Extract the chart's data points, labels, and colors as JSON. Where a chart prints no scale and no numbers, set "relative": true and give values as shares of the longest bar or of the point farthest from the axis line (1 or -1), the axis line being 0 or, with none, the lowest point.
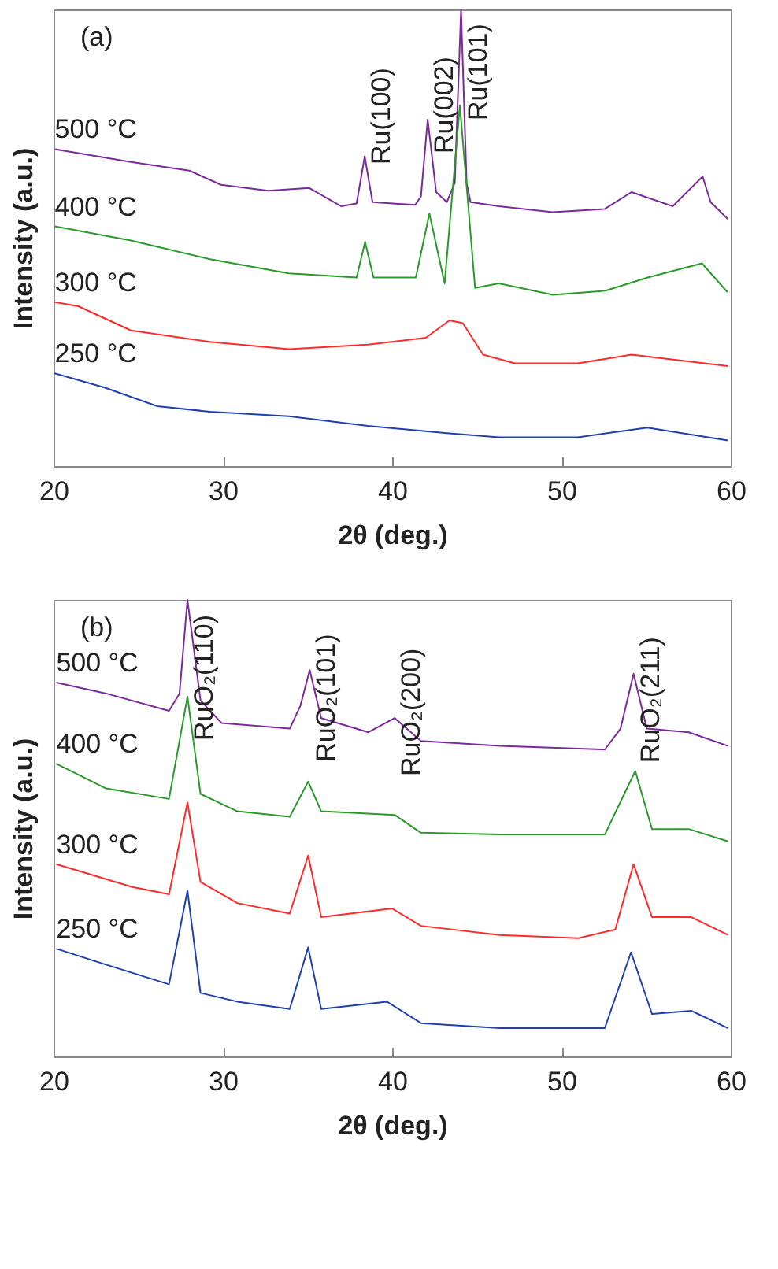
{
  "chart_data": [
    {
      "type": "line",
      "title": "(a)",
      "xlabel": "2θ (deg.)",
      "ylabel": "Intensity (a.u.)",
      "relative": true,
      "xlim": [
        20,
        60
      ],
      "xticks": [
        20,
        30,
        40,
        50,
        60
      ],
      "tick_labels": "x",
      "grid": false,
      "legend": false,
      "annotations": [
        {
          "text": "Ru(100)",
          "x": 38.38,
          "y": 0.678
        },
        {
          "text": "Ru(002)",
          "x": 42.1,
          "y": 0.759
        },
        {
          "text": "Ru(101)",
          "x": 44.07,
          "y": 1.0
        }
      ],
      "series": [
        {
          "name": "500 °C",
          "color": "#7b2a9b",
          "x": [
            20.07,
            24.57,
            28.02,
            29.89,
            32.69,
            35.11,
            36.98,
            37.9,
            38.38,
            38.84,
            41.36,
            41.7,
            42.1,
            42.6,
            43.23,
            43.7,
            44.07,
            44.4,
            44.63,
            46.31,
            49.48,
            52.56,
            54.14,
            56.57,
            58.34,
            58.81,
            59.83
          ],
          "values": [
            0.694,
            0.666,
            0.647,
            0.616,
            0.603,
            0.609,
            0.569,
            0.575,
            0.678,
            0.578,
            0.572,
            0.59,
            0.759,
            0.6,
            0.578,
            0.62,
            1.0,
            0.62,
            0.578,
            0.569,
            0.556,
            0.563,
            0.6,
            0.569,
            0.634,
            0.578,
            0.541
          ]
        },
        {
          "name": "400 °C",
          "color": "#2a9a2a",
          "x": [
            20.07,
            24.57,
            29.24,
            33.9,
            37.9,
            38.4,
            38.9,
            41.4,
            42.2,
            43.1,
            44.0,
            44.9,
            46.3,
            49.5,
            52.6,
            55.1,
            58.3,
            59.8
          ],
          "values": [
            0.525,
            0.494,
            0.453,
            0.422,
            0.413,
            0.491,
            0.413,
            0.413,
            0.553,
            0.4,
            0.79,
            0.39,
            0.4,
            0.375,
            0.384,
            0.413,
            0.444,
            0.381
          ]
        },
        {
          "name": "300 °C",
          "color": "#ff2a2a",
          "x": [
            20.07,
            21.46,
            24.57,
            29.24,
            33.9,
            38.56,
            41.99,
            43.39,
            44.17,
            45.37,
            47.24,
            50.97,
            54.14,
            59.83
          ],
          "values": [
            0.359,
            0.35,
            0.297,
            0.272,
            0.256,
            0.266,
            0.281,
            0.319,
            0.313,
            0.244,
            0.225,
            0.225,
            0.244,
            0.219
          ]
        },
        {
          "name": "250 °C",
          "color": "#2040b0",
          "x": [
            20.07,
            23.01,
            26.13,
            29.24,
            33.9,
            38.56,
            43.23,
            46.31,
            50.97,
            55.07,
            59.83
          ],
          "values": [
            0.203,
            0.172,
            0.131,
            0.119,
            0.109,
            0.088,
            0.072,
            0.063,
            0.063,
            0.084,
            0.056
          ]
        }
      ]
    },
    {
      "type": "line",
      "title": "(b)",
      "xlabel": "2θ (deg.)",
      "ylabel": "Intensity (a.u.)",
      "relative": true,
      "xlim": [
        20,
        60
      ],
      "xticks": [
        20,
        30,
        40,
        50,
        60
      ],
      "tick_labels": "x",
      "grid": false,
      "legend": false,
      "annotations": [
        {
          "text": "RuO₂(110)",
          "x": 27.91,
          "y": 1.0
        },
        {
          "text": "RuO₂(101)",
          "x": 35.13,
          "y": 0.846
        },
        {
          "text": "RuO₂(200)",
          "x": 40.15,
          "y": 0.741
        },
        {
          "text": "RuO₂(211)",
          "x": 54.26,
          "y": 0.838
        }
      ],
      "series": [
        {
          "name": "500 °C",
          "color": "#7b2a9b",
          "x": [
            20.16,
            23.1,
            26.82,
            27.44,
            27.91,
            28.68,
            29.93,
            33.95,
            34.58,
            35.13,
            35.81,
            38.6,
            40.15,
            41.7,
            46.35,
            52.56,
            53.49,
            54.26,
            55.04,
            57.52,
            59.84
          ],
          "values": [
            0.819,
            0.795,
            0.757,
            0.795,
            1.0,
            0.78,
            0.73,
            0.718,
            0.768,
            0.846,
            0.741,
            0.71,
            0.741,
            0.691,
            0.68,
            0.672,
            0.718,
            0.838,
            0.718,
            0.71,
            0.68
          ]
        },
        {
          "name": "400 °C",
          "color": "#2a9a2a",
          "x": [
            20.16,
            23.1,
            26.82,
            27.91,
            28.68,
            30.85,
            33.95,
            35.04,
            35.81,
            40.15,
            41.7,
            46.35,
            52.56,
            54.36,
            55.35,
            57.52,
            59.84
          ],
          "values": [
            0.641,
            0.587,
            0.564,
            0.788,
            0.575,
            0.537,
            0.525,
            0.602,
            0.537,
            0.529,
            0.49,
            0.486,
            0.486,
            0.625,
            0.498,
            0.498,
            0.471
          ]
        },
        {
          "name": "300 °C",
          "color": "#ff2a2a",
          "x": [
            20.16,
            24.65,
            26.82,
            27.91,
            28.68,
            30.85,
            33.95,
            35.04,
            35.81,
            40.0,
            41.7,
            46.35,
            51.0,
            53.18,
            54.26,
            55.35,
            57.67,
            59.84
          ],
          "values": [
            0.421,
            0.371,
            0.355,
            0.556,
            0.382,
            0.336,
            0.313,
            0.44,
            0.305,
            0.324,
            0.286,
            0.266,
            0.259,
            0.278,
            0.421,
            0.305,
            0.305,
            0.266
          ]
        },
        {
          "name": "250 °C",
          "color": "#2040b0",
          "x": [
            20.16,
            23.1,
            26.82,
            27.91,
            28.68,
            30.85,
            33.95,
            35.04,
            35.81,
            39.69,
            41.7,
            46.35,
            52.56,
            54.11,
            55.35,
            57.67,
            59.84
          ],
          "values": [
            0.236,
            0.201,
            0.158,
            0.363,
            0.139,
            0.12,
            0.104,
            0.239,
            0.104,
            0.12,
            0.073,
            0.062,
            0.062,
            0.228,
            0.093,
            0.1,
            0.062
          ]
        }
      ]
    }
  ]
}
